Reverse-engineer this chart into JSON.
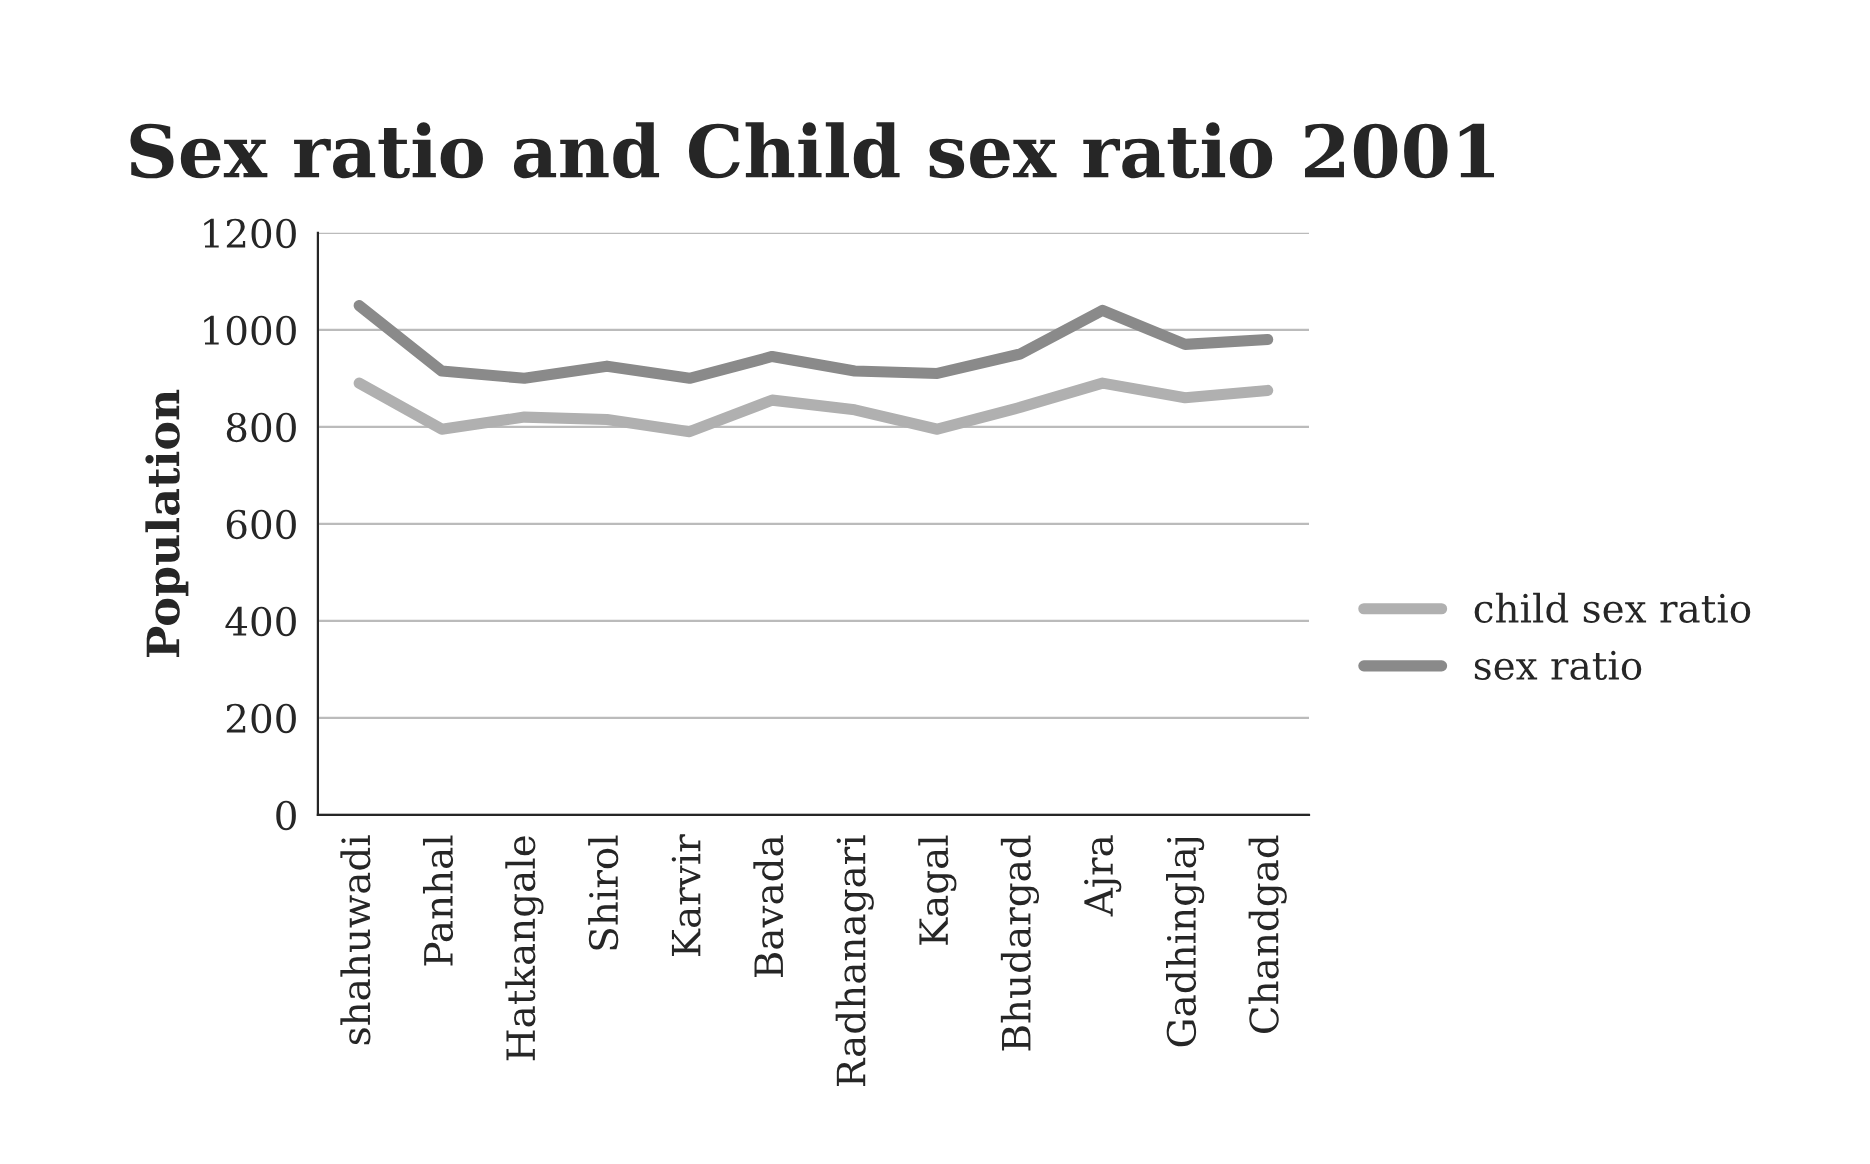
{
  "chart_data": {
    "type": "line",
    "title": "Sex ratio and Child sex ratio 2001",
    "ylabel": "Population",
    "categories": [
      "shahuwadi",
      "Panhal",
      "Hatkangale",
      "Shirol",
      "Karvir",
      "Bavada",
      "Radhanagari",
      "Kagal",
      "Bhudargad",
      "Ajra",
      "Gadhinglaj",
      "Chandgad"
    ],
    "series": [
      {
        "name": "child sex ratio",
        "color": "#b0b0b0",
        "values": [
          890,
          795,
          820,
          815,
          790,
          855,
          835,
          795,
          840,
          890,
          860,
          875
        ]
      },
      {
        "name": "sex ratio",
        "color": "#8a8a8a",
        "values": [
          1050,
          915,
          900,
          925,
          900,
          945,
          915,
          910,
          950,
          1040,
          970,
          980
        ]
      }
    ],
    "ylim": [
      0,
      1200
    ],
    "yticks": [
      0,
      200,
      400,
      600,
      800,
      1000,
      1200
    ],
    "grid": "y",
    "legend": "right"
  }
}
